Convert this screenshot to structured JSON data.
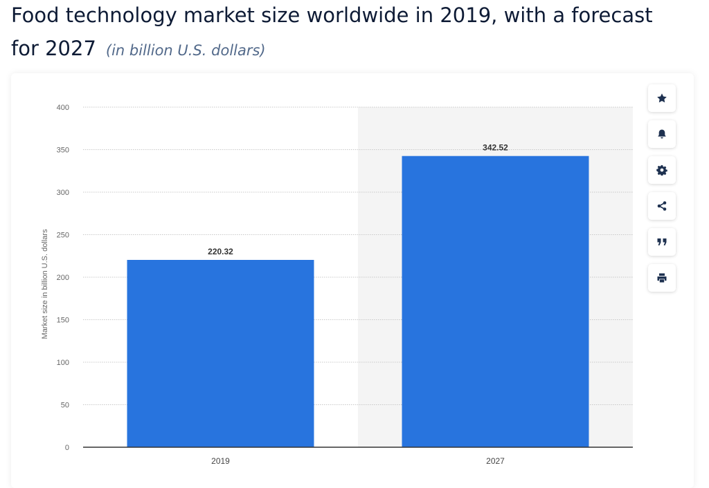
{
  "header": {
    "title": "Food technology market size worldwide in 2019, with a forecast for 2027",
    "subtitle": "(in billion U.S. dollars)"
  },
  "chart_data": {
    "type": "bar",
    "title": "Food technology market size worldwide in 2019, with a forecast for 2027",
    "categories": [
      "2019",
      "2027"
    ],
    "values": [
      220.32,
      342.52
    ],
    "value_labels": [
      "220.32",
      "342.52"
    ],
    "xlabel": "",
    "ylabel": "Market size in billion U.S. dollars",
    "ylim": [
      0,
      400
    ],
    "yticks": [
      0,
      50,
      100,
      150,
      200,
      250,
      300,
      350,
      400
    ],
    "forecast_from_category": "2027",
    "grid": true,
    "bar_color": "#2874de"
  },
  "colors": {
    "bar": "#2874de",
    "forecast_bg": "#f4f4f4",
    "grid": "#c8c8c8",
    "axis": "#333333",
    "title": "#0e1b35",
    "subtitle": "#52698a",
    "icon": "#1e3150"
  },
  "actions": [
    {
      "name": "star-icon",
      "label": "Favorite"
    },
    {
      "name": "bell-icon",
      "label": "Notifications"
    },
    {
      "name": "gear-icon",
      "label": "Settings"
    },
    {
      "name": "share-icon",
      "label": "Share"
    },
    {
      "name": "quote-icon",
      "label": "Cite"
    },
    {
      "name": "print-icon",
      "label": "Print"
    }
  ]
}
